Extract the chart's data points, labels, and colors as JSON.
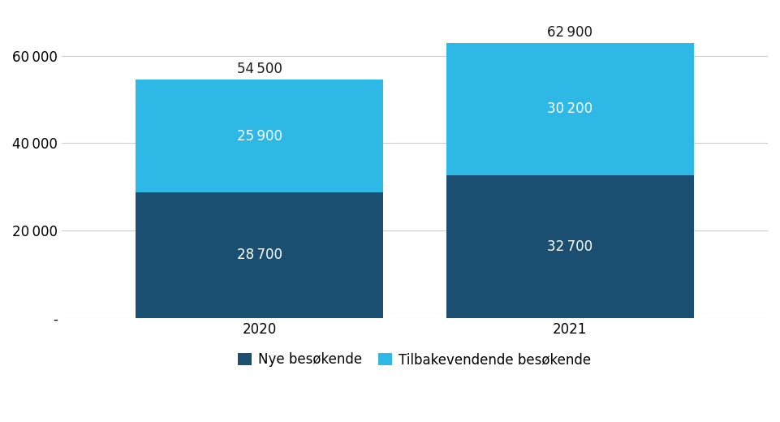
{
  "categories": [
    "2020",
    "2021"
  ],
  "nye_besoekende": [
    28700,
    32700
  ],
  "tilbakevendende_besoekende": [
    25900,
    30200
  ],
  "totals": [
    54500,
    62900
  ],
  "color_nye": "#1b4f72",
  "color_tilbake": "#2eb8e6",
  "bar_width": 0.35,
  "ylim": [
    0,
    70000
  ],
  "yticks": [
    0,
    20000,
    40000,
    60000
  ],
  "ylabel_zero": "-",
  "legend_nye": "Nye besøkende",
  "legend_tilbake": "Tilbakevendende besøkende",
  "label_fontsize": 12,
  "tick_fontsize": 12,
  "total_label_fontsize": 12,
  "inside_label_fontsize": 12,
  "background_color": "#ffffff",
  "x_positions": [
    0.28,
    0.72
  ]
}
